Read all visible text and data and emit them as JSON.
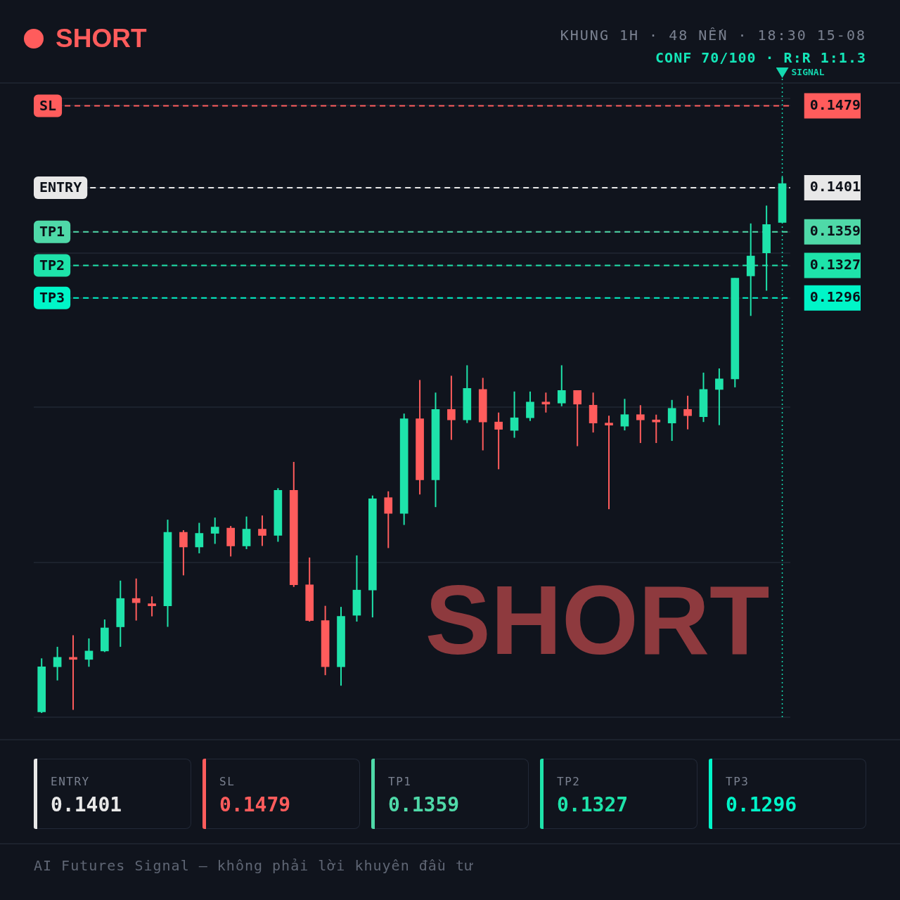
{
  "chart_data": [
    {
      "type": "candlestick",
      "title": "SHORT",
      "subtitle": "KHUNG 1H · 48 NẾN · 18:30 15-08",
      "annotations": [
        "CONF 70/100 · R:R 1:1.3",
        "SHORT",
        "SIGNAL"
      ],
      "categories": [
        null,
        null,
        null,
        null,
        null,
        null,
        null,
        null,
        null,
        null,
        null,
        null,
        null,
        null,
        null,
        null,
        null,
        null,
        null,
        null,
        null,
        null,
        null,
        null,
        null,
        null,
        null,
        null,
        null,
        null,
        null,
        null,
        null,
        null,
        null,
        null,
        null,
        null,
        null,
        null,
        null,
        null,
        null,
        null,
        null,
        null,
        null,
        null
      ],
      "ohlc": [
        [
          0.0902,
          0.0953,
          0.0901,
          0.0945
        ],
        [
          0.0945,
          0.0964,
          0.0932,
          0.0954
        ],
        [
          0.0954,
          0.0975,
          0.0904,
          0.0952
        ],
        [
          0.0952,
          0.0972,
          0.0945,
          0.096
        ],
        [
          0.096,
          0.099,
          0.0959,
          0.0982
        ],
        [
          0.0983,
          0.1027,
          0.0964,
          0.101
        ],
        [
          0.101,
          0.1029,
          0.0989,
          0.1006
        ],
        [
          0.1005,
          0.1012,
          0.0993,
          0.1003
        ],
        [
          0.1003,
          0.1085,
          0.0983,
          0.1073
        ],
        [
          0.1073,
          0.1075,
          0.1032,
          0.1059
        ],
        [
          0.1059,
          0.1082,
          0.1053,
          0.1072
        ],
        [
          0.1072,
          0.1087,
          0.1062,
          0.1078
        ],
        [
          0.1077,
          0.1079,
          0.105,
          0.106
        ],
        [
          0.106,
          0.1088,
          0.1057,
          0.1076
        ],
        [
          0.1076,
          0.1089,
          0.106,
          0.107
        ],
        [
          0.107,
          0.1115,
          0.1064,
          0.1113
        ],
        [
          0.1113,
          0.114,
          0.1021,
          0.1023
        ],
        [
          0.1023,
          0.1049,
          0.0988,
          0.0989
        ],
        [
          0.0989,
          0.1003,
          0.0937,
          0.0945
        ],
        [
          0.0945,
          0.1002,
          0.0927,
          0.0993
        ],
        [
          0.0994,
          0.1051,
          0.0988,
          0.1018
        ],
        [
          0.1018,
          0.1108,
          0.0992,
          0.1105
        ],
        [
          0.1106,
          0.1112,
          0.1058,
          0.1091
        ],
        [
          0.1091,
          0.1186,
          0.108,
          0.1181
        ],
        [
          0.1181,
          0.1218,
          0.1109,
          0.1123
        ],
        [
          0.1123,
          0.1206,
          0.1097,
          0.119
        ],
        [
          0.119,
          0.1222,
          0.1161,
          0.118
        ],
        [
          0.118,
          0.1232,
          0.1177,
          0.121
        ],
        [
          0.1209,
          0.122,
          0.1151,
          0.1178
        ],
        [
          0.1178,
          0.1187,
          0.1133,
          0.1171
        ],
        [
          0.117,
          0.1207,
          0.1163,
          0.1182
        ],
        [
          0.1182,
          0.1207,
          0.1179,
          0.1197
        ],
        [
          0.1197,
          0.1206,
          0.1187,
          0.1195
        ],
        [
          0.1196,
          0.1232,
          0.1193,
          0.1208
        ],
        [
          0.1208,
          0.1208,
          0.1155,
          0.1195
        ],
        [
          0.1194,
          0.1206,
          0.1168,
          0.1177
        ],
        [
          0.1177,
          0.1184,
          0.1095,
          0.1175
        ],
        [
          0.1174,
          0.12,
          0.117,
          0.1185
        ],
        [
          0.1185,
          0.1194,
          0.1158,
          0.118
        ],
        [
          0.118,
          0.1185,
          0.1158,
          0.1178
        ],
        [
          0.1177,
          0.1199,
          0.116,
          0.1191
        ],
        [
          0.119,
          0.1203,
          0.1171,
          0.1184
        ],
        [
          0.1183,
          0.1225,
          0.1178,
          0.1209
        ],
        [
          0.1209,
          0.1229,
          0.1175,
          0.1219
        ],
        [
          0.1219,
          0.1315,
          0.1211,
          0.1315
        ],
        [
          0.1317,
          0.1367,
          0.1279,
          0.1336
        ],
        [
          0.1339,
          0.1384,
          0.1303,
          0.1366
        ],
        [
          0.1368,
          0.1411,
          0.1368,
          0.1405
        ]
      ],
      "colors": [
        "#1ee3aa",
        "#1ee3aa",
        "#ff5c5c",
        "#1ee3aa",
        "#1ee3aa",
        "#1ee3aa",
        "#ff5c5c",
        "#ff5c5c",
        "#1ee3aa",
        "#ff5c5c",
        "#1ee3aa",
        "#1ee3aa",
        "#ff5c5c",
        "#1ee3aa",
        "#ff5c5c",
        "#1ee3aa",
        "#ff5c5c",
        "#ff5c5c",
        "#ff5c5c",
        "#1ee3aa",
        "#1ee3aa",
        "#1ee3aa",
        "#ff5c5c",
        "#1ee3aa",
        "#ff5c5c",
        "#1ee3aa",
        "#ff5c5c",
        "#1ee3aa",
        "#ff5c5c",
        "#ff5c5c",
        "#1ee3aa",
        "#1ee3aa",
        "#ff5c5c",
        "#1ee3aa",
        "#ff5c5c",
        "#ff5c5c",
        "#ff5c5c",
        "#1ee3aa",
        "#ff5c5c",
        "#ff5c5c",
        "#1ee3aa",
        "#ff5c5c",
        "#1ee3aa",
        "#1ee3aa",
        "#1ee3aa",
        "#1ee3aa",
        "#1ee3aa",
        "#1ee3aa"
      ],
      "ylim": [
        0.0897,
        0.1486
      ],
      "yticks": [
        {
          "value": 0.0897,
          "label": null
        },
        {
          "value": 0.1044,
          "label": null
        },
        {
          "value": 0.1192,
          "label": null
        },
        0.1296,
        0.1327,
        {
          "value": 0.1339,
          "label": null
        },
        0.1359,
        0.1401,
        0.1479,
        {
          "value": 0.1486,
          "label": null
        }
      ],
      "grid": "y",
      "tick_labels": "y",
      "ref_lines": [
        {
          "axis": "y",
          "value": 0.1401,
          "label": "ENTRY",
          "color": "#e8e8e8",
          "line_style": "dashed"
        },
        {
          "axis": "y",
          "value": 0.1479,
          "label": "SL",
          "color": "#ff5c5c",
          "line_style": "dashed"
        },
        {
          "axis": "y",
          "value": 0.1359,
          "label": "TP1",
          "color": "#4fd9a8",
          "line_style": "dashed"
        },
        {
          "axis": "y",
          "value": 0.1327,
          "label": "TP2",
          "color": "#1ee3aa",
          "line_style": "dashed"
        },
        {
          "axis": "y",
          "value": 0.1296,
          "label": "TP3",
          "color": "#00f5c8",
          "line_style": "dashed"
        }
      ]
    },
    {
      "type": "other",
      "annotations": [
        "ENTRY",
        "0.1401",
        "SL",
        "0.1479",
        "TP1",
        "0.1359",
        "TP2",
        "0.1327",
        "TP3",
        "0.1296",
        "AI Futures Signal — không phải lời khuyên đầu tư"
      ]
    }
  ]
}
